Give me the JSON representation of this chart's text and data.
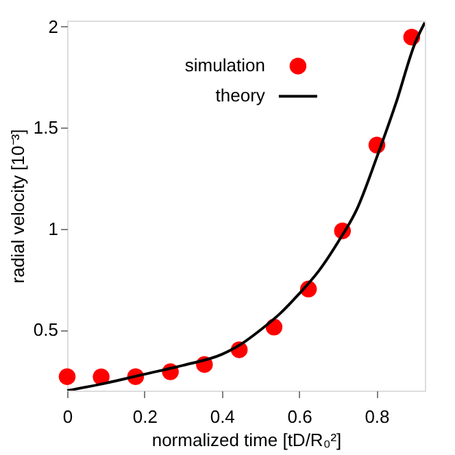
{
  "chart_data": {
    "type": "scatter",
    "xlabel": "normalized time [tD/R₀²]",
    "ylabel": "radial velocity [10⁻³]",
    "xlim": [
      0,
      0.925
    ],
    "ylim": [
      0.2,
      2.03
    ],
    "xticks": [
      0,
      0.2,
      0.4,
      0.6,
      0.8
    ],
    "yticks": [
      0.5,
      1,
      1.5,
      2
    ],
    "grid": false,
    "legend": "top",
    "series": [
      {
        "name": "simulation",
        "marker": "circle",
        "color": "#ff0000",
        "x": [
          0,
          0.088,
          0.177,
          0.267,
          0.355,
          0.445,
          0.535,
          0.624,
          0.712,
          0.801,
          0.891
        ],
        "values": [
          0.269,
          0.268,
          0.269,
          0.293,
          0.329,
          0.402,
          0.514,
          0.702,
          0.99,
          1.414,
          1.948
        ]
      },
      {
        "name": "theory",
        "type": "line",
        "line_style": "solid",
        "color": "#000000",
        "x": [
          0,
          0.1,
          0.2,
          0.3,
          0.4,
          0.45,
          0.5,
          0.55,
          0.6,
          0.65,
          0.7,
          0.75,
          0.8,
          0.85,
          0.9,
          0.925
        ],
        "values": [
          0.2,
          0.237,
          0.281,
          0.325,
          0.379,
          0.43,
          0.5,
          0.58,
          0.679,
          0.79,
          0.933,
          1.1,
          1.35,
          1.62,
          1.92,
          2.02
        ]
      }
    ]
  }
}
